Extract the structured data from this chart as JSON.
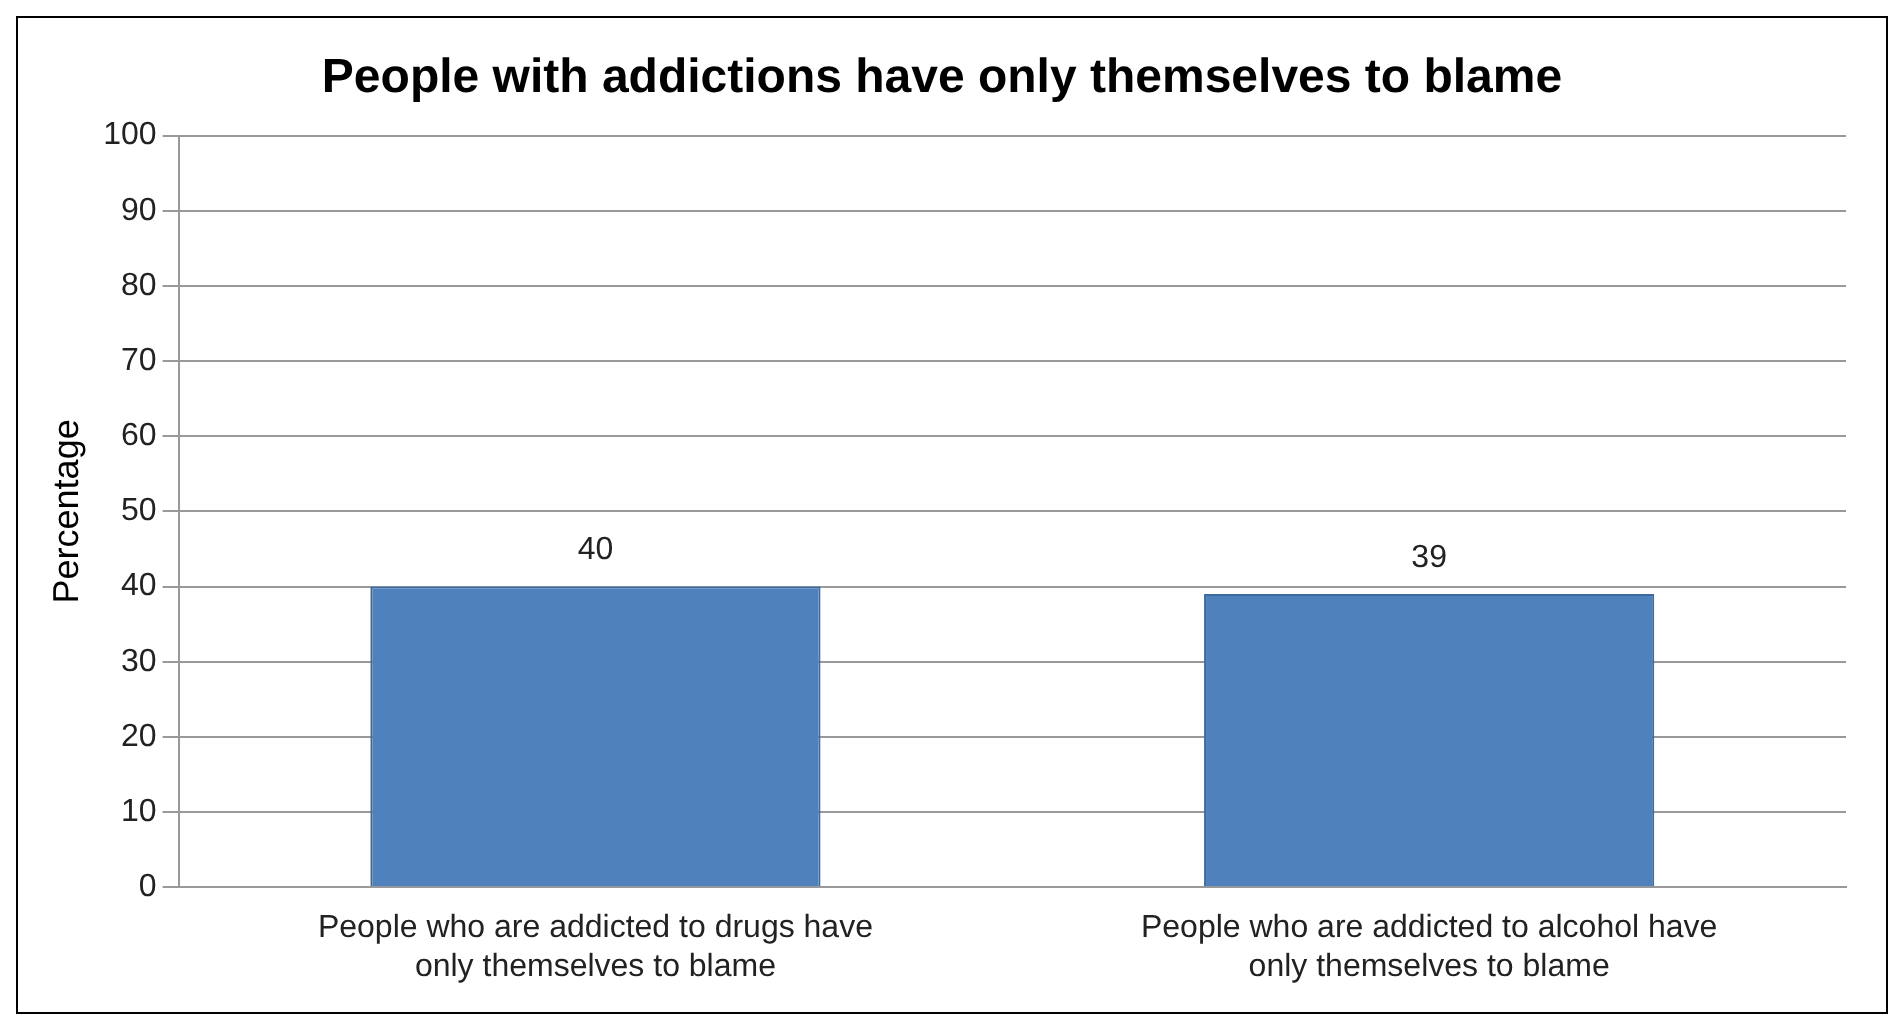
{
  "chart_data": {
    "type": "bar",
    "title": "People with addictions have only themselves to blame",
    "ylabel": "Percentage",
    "categories": [
      "People who are addicted to drugs have only themselves to blame",
      "People who are addicted to alcohol have only themselves to blame"
    ],
    "values": [
      40,
      39
    ],
    "color": "#4f81bd",
    "ylim": [
      0,
      100
    ],
    "yticks": [
      0,
      10,
      20,
      30,
      40,
      50,
      60,
      70,
      80,
      90,
      100
    ],
    "grid": "y",
    "data_labels": true,
    "legend": false
  }
}
